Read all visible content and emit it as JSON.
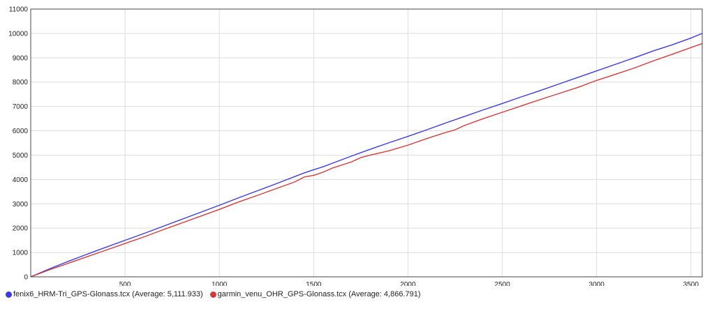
{
  "chart_data": {
    "type": "line",
    "xlim": [
      0,
      3560
    ],
    "ylim": [
      0,
      11000
    ],
    "x_ticks": [
      500,
      1000,
      1500,
      2000,
      2500,
      3000,
      3500
    ],
    "y_ticks": [
      0,
      1000,
      2000,
      3000,
      4000,
      5000,
      6000,
      7000,
      8000,
      9000,
      10000,
      11000
    ],
    "grid": true,
    "legend_position": "bottom-left",
    "series": [
      {
        "name": "fenix6_HRM-Tri_GPS-Glonass.tcx",
        "average_label": "(Average: 5,111.933)",
        "color": "#3b3be0",
        "x": [
          0,
          100,
          200,
          300,
          400,
          500,
          600,
          700,
          800,
          900,
          1000,
          1100,
          1200,
          1300,
          1400,
          1450,
          1500,
          1550,
          1600,
          1700,
          1800,
          1900,
          2000,
          2100,
          2200,
          2300,
          2400,
          2500,
          2600,
          2700,
          2800,
          2900,
          3000,
          3100,
          3200,
          3300,
          3400,
          3500,
          3560
        ],
        "y": [
          0,
          330,
          640,
          930,
          1220,
          1500,
          1780,
          2070,
          2360,
          2650,
          2940,
          3240,
          3530,
          3820,
          4120,
          4270,
          4400,
          4520,
          4670,
          4960,
          5240,
          5510,
          5770,
          6040,
          6320,
          6590,
          6860,
          7120,
          7390,
          7650,
          7920,
          8190,
          8460,
          8730,
          9000,
          9280,
          9530,
          9810,
          10000
        ]
      },
      {
        "name": "garmin_venu_OHR_GPS-Glonass.tcx",
        "average_label": "(Average: 4,866.791)",
        "color": "#d43a3a",
        "x": [
          0,
          100,
          200,
          300,
          400,
          500,
          600,
          700,
          800,
          900,
          1000,
          1100,
          1200,
          1300,
          1400,
          1450,
          1500,
          1550,
          1600,
          1700,
          1750,
          1800,
          1900,
          2000,
          2100,
          2200,
          2250,
          2300,
          2400,
          2500,
          2600,
          2700,
          2800,
          2900,
          3000,
          3100,
          3200,
          3300,
          3400,
          3500,
          3560
        ],
        "y": [
          0,
          290,
          560,
          830,
          1100,
          1370,
          1640,
          1930,
          2210,
          2490,
          2770,
          3070,
          3340,
          3620,
          3900,
          4100,
          4170,
          4300,
          4470,
          4720,
          4900,
          5000,
          5180,
          5410,
          5680,
          5930,
          6040,
          6220,
          6500,
          6760,
          7020,
          7280,
          7530,
          7780,
          8070,
          8320,
          8580,
          8870,
          9140,
          9420,
          9580
        ]
      }
    ]
  }
}
